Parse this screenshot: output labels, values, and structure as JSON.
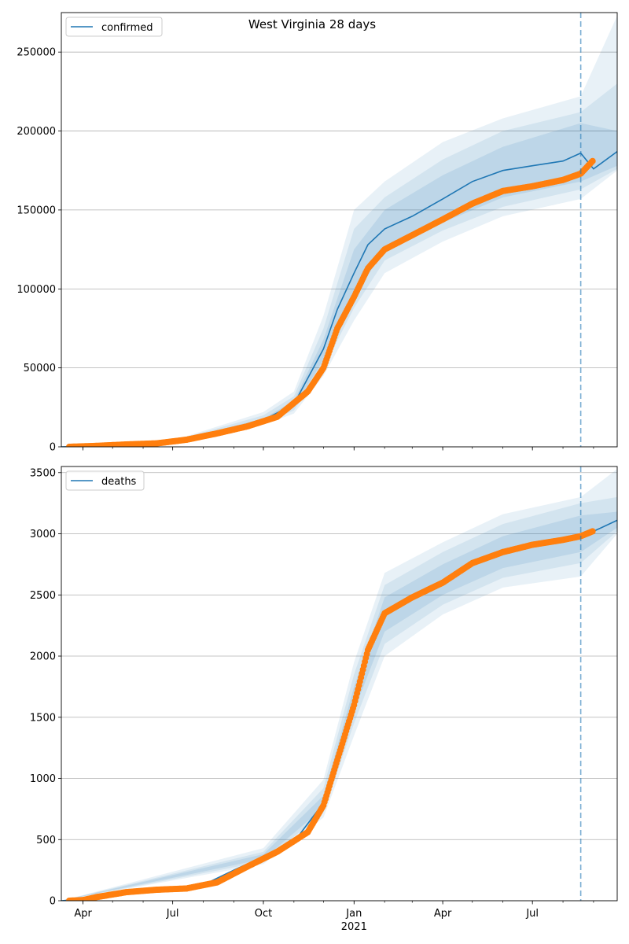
{
  "figure": {
    "title": "West Virginia 28 days"
  },
  "colors": {
    "model_line": "#1f77b4",
    "band": "#1f77b4",
    "observed": "#ff7f0e",
    "grid": "#b0b0b0",
    "forecast_line": "#1f77b4"
  },
  "x_axis": {
    "tick_labels": [
      "Apr",
      "Jul",
      "Oct",
      "Jan",
      "Apr",
      "Jul"
    ],
    "tick_dates": [
      "2020-04-01",
      "2020-07-01",
      "2020-10-01",
      "2021-01-01",
      "2021-04-01",
      "2021-07-01"
    ],
    "year_label": "2021",
    "range": [
      "2020-03-10",
      "2021-09-25"
    ],
    "forecast_start": "2021-08-19"
  },
  "chart_data": [
    {
      "type": "line",
      "legend": "confirmed",
      "legend_position": "top-left",
      "grid": "horizontal",
      "ylim": [
        0,
        275000
      ],
      "yticks": [
        0,
        50000,
        100000,
        150000,
        200000,
        250000
      ],
      "series": [
        {
          "name": "confirmed",
          "points": [
            [
              "2020-03-10",
              0
            ],
            [
              "2020-04-01",
              300
            ],
            [
              "2020-05-01",
              1300
            ],
            [
              "2020-06-01",
              2100
            ],
            [
              "2020-07-01",
              3200
            ],
            [
              "2020-08-01",
              7000
            ],
            [
              "2020-09-01",
              12000
            ],
            [
              "2020-10-01",
              17000
            ],
            [
              "2020-11-01",
              27000
            ],
            [
              "2020-12-01",
              62000
            ],
            [
              "2020-12-15",
              87000
            ],
            [
              "2021-01-01",
              110000
            ],
            [
              "2021-01-15",
              128000
            ],
            [
              "2021-02-01",
              138000
            ],
            [
              "2021-03-01",
              146000
            ],
            [
              "2021-04-01",
              157000
            ],
            [
              "2021-05-01",
              168000
            ],
            [
              "2021-06-01",
              175000
            ],
            [
              "2021-07-01",
              178000
            ],
            [
              "2021-08-01",
              181000
            ],
            [
              "2021-08-19",
              186000
            ],
            [
              "2021-09-01",
              176000
            ],
            [
              "2021-09-25",
              187000
            ]
          ],
          "band_50": [
            [
              "2020-03-10",
              0,
              0
            ],
            [
              "2020-07-01",
              3000,
              3400
            ],
            [
              "2020-10-01",
              16000,
              18000
            ],
            [
              "2020-11-01",
              25000,
              29000
            ],
            [
              "2020-12-01",
              55000,
              68000
            ],
            [
              "2021-01-01",
              95000,
              125000
            ],
            [
              "2021-02-01",
              125000,
              150000
            ],
            [
              "2021-04-01",
              142000,
              172000
            ],
            [
              "2021-06-01",
              158000,
              190000
            ],
            [
              "2021-08-19",
              168000,
              205000
            ],
            [
              "2021-09-25",
              178000,
              200000
            ]
          ],
          "band_80": [
            [
              "2020-03-10",
              0,
              0
            ],
            [
              "2020-07-01",
              2800,
              3700
            ],
            [
              "2020-10-01",
              15000,
              20000
            ],
            [
              "2020-11-01",
              23000,
              32000
            ],
            [
              "2020-12-01",
              50000,
              75000
            ],
            [
              "2021-01-01",
              88000,
              138000
            ],
            [
              "2021-02-01",
              118000,
              158000
            ],
            [
              "2021-04-01",
              137000,
              182000
            ],
            [
              "2021-06-01",
              152000,
              200000
            ],
            [
              "2021-08-19",
              163000,
              212000
            ],
            [
              "2021-09-25",
              176000,
              230000
            ]
          ],
          "band_95": [
            [
              "2020-03-10",
              0,
              0
            ],
            [
              "2020-07-01",
              2600,
              4000
            ],
            [
              "2020-10-01",
              14000,
              22000
            ],
            [
              "2020-11-01",
              21000,
              35000
            ],
            [
              "2020-12-01",
              45000,
              83000
            ],
            [
              "2021-01-01",
              80000,
              150000
            ],
            [
              "2021-02-01",
              110000,
              168000
            ],
            [
              "2021-04-01",
              130000,
              193000
            ],
            [
              "2021-06-01",
              146000,
              208000
            ],
            [
              "2021-08-19",
              157000,
              222000
            ],
            [
              "2021-09-25",
              175000,
              273000
            ]
          ]
        },
        {
          "name": "observed",
          "points": [
            [
              "2020-03-18",
              0
            ],
            [
              "2020-04-15",
              600
            ],
            [
              "2020-05-15",
              1500
            ],
            [
              "2020-06-15",
              2200
            ],
            [
              "2020-07-15",
              4500
            ],
            [
              "2020-08-15",
              8500
            ],
            [
              "2020-09-15",
              13000
            ],
            [
              "2020-10-15",
              19000
            ],
            [
              "2020-11-15",
              35000
            ],
            [
              "2020-12-01",
              50000
            ],
            [
              "2020-12-15",
              75000
            ],
            [
              "2021-01-01",
              95000
            ],
            [
              "2021-01-15",
              113000
            ],
            [
              "2021-02-01",
              125000
            ],
            [
              "2021-03-01",
              134000
            ],
            [
              "2021-04-01",
              144000
            ],
            [
              "2021-05-01",
              154000
            ],
            [
              "2021-06-01",
              162000
            ],
            [
              "2021-07-01",
              165000
            ],
            [
              "2021-08-01",
              169000
            ],
            [
              "2021-08-19",
              173000
            ],
            [
              "2021-08-25",
              177000
            ],
            [
              "2021-08-31",
              181000
            ]
          ]
        }
      ]
    },
    {
      "type": "line",
      "legend": "deaths",
      "legend_position": "top-left",
      "grid": "horizontal",
      "ylim": [
        0,
        3550
      ],
      "yticks": [
        0,
        500,
        1000,
        1500,
        2000,
        2500,
        3000,
        3500
      ],
      "series": [
        {
          "name": "deaths",
          "points": [
            [
              "2020-03-10",
              0
            ],
            [
              "2020-04-01",
              15
            ],
            [
              "2020-05-01",
              60
            ],
            [
              "2020-06-01",
              85
            ],
            [
              "2020-07-01",
              95
            ],
            [
              "2020-08-01",
              130
            ],
            [
              "2020-09-01",
              250
            ],
            [
              "2020-10-01",
              360
            ],
            [
              "2020-11-01",
              480
            ],
            [
              "2020-12-01",
              800
            ],
            [
              "2020-12-15",
              1200
            ],
            [
              "2021-01-01",
              1650
            ],
            [
              "2021-01-15",
              2050
            ],
            [
              "2021-02-01",
              2350
            ],
            [
              "2021-03-01",
              2500
            ],
            [
              "2021-04-01",
              2620
            ],
            [
              "2021-05-01",
              2760
            ],
            [
              "2021-06-01",
              2850
            ],
            [
              "2021-07-01",
              2920
            ],
            [
              "2021-08-01",
              2950
            ],
            [
              "2021-08-19",
              2975
            ],
            [
              "2021-09-01",
              3020
            ],
            [
              "2021-09-25",
              3110
            ]
          ],
          "band_50": [
            [
              "2020-03-10",
              0,
              0
            ],
            [
              "2020-10-01",
              340,
              380
            ],
            [
              "2020-12-01",
              760,
              860
            ],
            [
              "2021-01-01",
              1550,
              1750
            ],
            [
              "2021-02-01",
              2200,
              2480
            ],
            [
              "2021-04-01",
              2500,
              2750
            ],
            [
              "2021-06-01",
              2720,
              2980
            ],
            [
              "2021-08-19",
              2850,
              3150
            ],
            [
              "2021-09-25",
              3050,
              3180
            ]
          ],
          "band_80": [
            [
              "2020-03-10",
              0,
              0
            ],
            [
              "2020-10-01",
              320,
              400
            ],
            [
              "2020-12-01",
              720,
              920
            ],
            [
              "2021-01-01",
              1450,
              1850
            ],
            [
              "2021-02-01",
              2100,
              2580
            ],
            [
              "2021-04-01",
              2420,
              2850
            ],
            [
              "2021-06-01",
              2640,
              3080
            ],
            [
              "2021-08-19",
              2760,
              3250
            ],
            [
              "2021-09-25",
              3020,
              3300
            ]
          ],
          "band_95": [
            [
              "2020-03-10",
              0,
              0
            ],
            [
              "2020-10-01",
              300,
              430
            ],
            [
              "2020-12-01",
              680,
              990
            ],
            [
              "2021-01-01",
              1350,
              1950
            ],
            [
              "2021-02-01",
              2000,
              2680
            ],
            [
              "2021-04-01",
              2340,
              2930
            ],
            [
              "2021-06-01",
              2560,
              3160
            ],
            [
              "2021-08-19",
              2650,
              3300
            ],
            [
              "2021-09-25",
              3000,
              3530
            ]
          ]
        },
        {
          "name": "observed",
          "points": [
            [
              "2020-03-18",
              0
            ],
            [
              "2020-04-01",
              5
            ],
            [
              "2020-04-15",
              30
            ],
            [
              "2020-05-15",
              70
            ],
            [
              "2020-06-15",
              90
            ],
            [
              "2020-07-15",
              100
            ],
            [
              "2020-08-15",
              150
            ],
            [
              "2020-09-15",
              280
            ],
            [
              "2020-10-15",
              400
            ],
            [
              "2020-11-15",
              560
            ],
            [
              "2020-12-01",
              780
            ],
            [
              "2020-12-15",
              1150
            ],
            [
              "2021-01-01",
              1600
            ],
            [
              "2021-01-15",
              2050
            ],
            [
              "2021-02-01",
              2350
            ],
            [
              "2021-03-01",
              2480
            ],
            [
              "2021-04-01",
              2600
            ],
            [
              "2021-05-01",
              2760
            ],
            [
              "2021-06-01",
              2850
            ],
            [
              "2021-07-01",
              2910
            ],
            [
              "2021-08-01",
              2950
            ],
            [
              "2021-08-19",
              2980
            ],
            [
              "2021-08-31",
              3020
            ]
          ]
        }
      ]
    }
  ]
}
